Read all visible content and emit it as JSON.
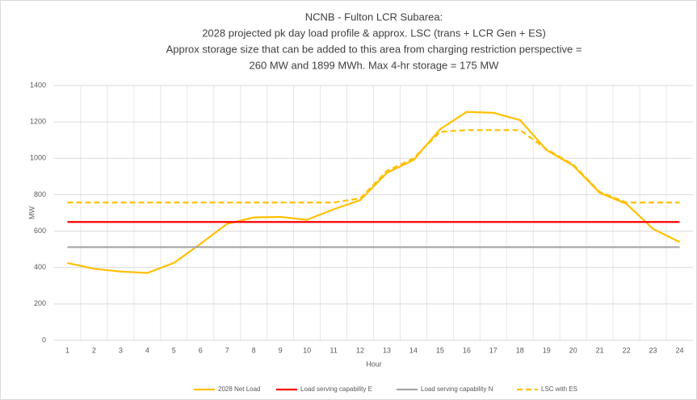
{
  "chart_data": {
    "type": "line",
    "title": [
      "NCNB - Fulton LCR Subarea:",
      "2028 projected pk day load profile & approx. LSC (trans + LCR Gen + ES)",
      "Approx storage size that can be added to this area from charging restriction perspective =",
      "260 MW and 1899 MWh. Max 4-hr storage = 175 MW"
    ],
    "x_label": "Hour",
    "y_label": "MW",
    "categories": [
      1,
      2,
      3,
      4,
      5,
      6,
      7,
      8,
      9,
      10,
      11,
      12,
      13,
      14,
      15,
      16,
      17,
      18,
      19,
      20,
      21,
      22,
      23,
      24
    ],
    "ylim": [
      0,
      1400
    ],
    "yticks": [
      0,
      200,
      400,
      600,
      800,
      1000,
      1200,
      1400
    ],
    "grid": true,
    "legend": "bottom",
    "series": [
      {
        "name": "2028 Net Load",
        "color": "#ffc000",
        "dash": false,
        "values": [
          425,
          393,
          378,
          370,
          425,
          530,
          640,
          675,
          678,
          662,
          720,
          770,
          920,
          990,
          1160,
          1255,
          1250,
          1210,
          1045,
          960,
          810,
          750,
          612,
          540
        ]
      },
      {
        "name": "Load serving capability E",
        "color": "#ff0000",
        "dash": false,
        "values": [
          650,
          650,
          650,
          650,
          650,
          650,
          650,
          650,
          650,
          650,
          650,
          650,
          650,
          650,
          650,
          650,
          650,
          650,
          650,
          650,
          650,
          650,
          650,
          650
        ]
      },
      {
        "name": "Load serving capability N",
        "color": "#a5a5a5",
        "dash": false,
        "values": [
          512,
          512,
          512,
          512,
          512,
          512,
          512,
          512,
          512,
          512,
          512,
          512,
          512,
          512,
          512,
          512,
          512,
          512,
          512,
          512,
          512,
          512,
          512,
          512
        ]
      },
      {
        "name": "LSC with ES",
        "color": "#ffc000",
        "dash": true,
        "values": [
          757,
          757,
          757,
          757,
          757,
          757,
          757,
          757,
          757,
          757,
          757,
          780,
          930,
          1000,
          1145,
          1155,
          1155,
          1155,
          1050,
          965,
          815,
          757,
          757,
          757
        ]
      }
    ]
  }
}
